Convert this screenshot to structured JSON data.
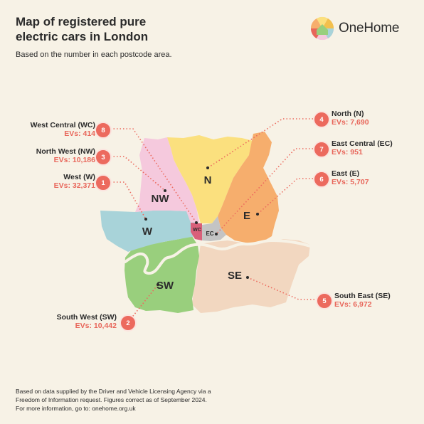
{
  "header": {
    "title_line1": "Map of registered pure",
    "title_line2": "electric cars in London",
    "subtitle": "Based on the number in each postcode area."
  },
  "brand": {
    "name": "OneHome",
    "icon": "house-logo-icon"
  },
  "colors": {
    "NW": "#f5c9dd",
    "N": "#fbe07e",
    "E": "#f6ae6d",
    "W": "#a8d3d9",
    "WC": "#d9607a",
    "EC": "#c4c4c4",
    "SW": "#99cf7d",
    "SE": "#f2d7c0",
    "accent": "#ec6a5e"
  },
  "areas": {
    "NW": "NW",
    "N": "N",
    "E": "E",
    "W": "W",
    "WC": "WC",
    "EC": "EC",
    "SW": "SW",
    "SE": "SE"
  },
  "callouts": [
    {
      "id": "wc",
      "number": "8",
      "name": "West Central (WC)",
      "evs": "EVs: 414"
    },
    {
      "id": "nw",
      "number": "3",
      "name": "North West (NW)",
      "evs": "EVs: 10,186"
    },
    {
      "id": "w",
      "number": "1",
      "name": "West (W)",
      "evs": "EVs: 32,371"
    },
    {
      "id": "sw",
      "number": "2",
      "name": "South West (SW)",
      "evs": "EVs: 10,442"
    },
    {
      "id": "n",
      "number": "4",
      "name": "North (N)",
      "evs": "EVs: 7,690"
    },
    {
      "id": "ec",
      "number": "7",
      "name": "East Central (EC)",
      "evs": "EVs: 951"
    },
    {
      "id": "e",
      "number": "6",
      "name": "East (E)",
      "evs": "EVs: 5,707"
    },
    {
      "id": "se",
      "number": "5",
      "name": "South East  (SE)",
      "evs": "EVs: 6,972"
    }
  ],
  "footnote": {
    "line1": "Based on data supplied by the Driver and Vehicle Licensing Agency via a",
    "line2": "Freedom of Information request. Figures correct as of September 2024.",
    "line3": "For more information, go to: onehome.org.uk"
  }
}
